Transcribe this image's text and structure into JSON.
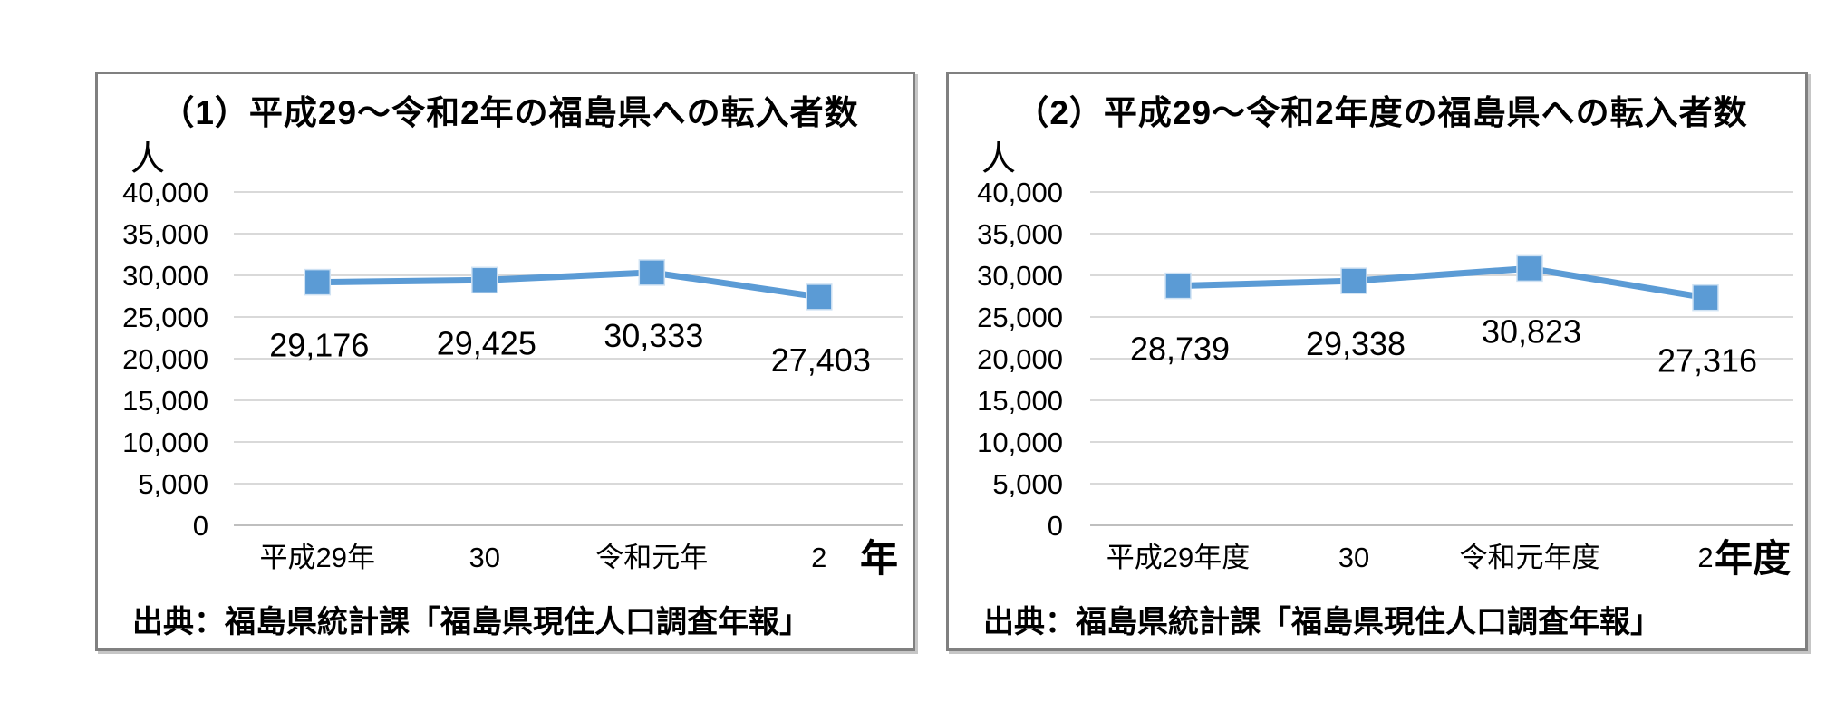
{
  "colors": {
    "series_blue": "#5B9BD5",
    "marker_edge": "#CFE2F3",
    "gridline": "#D9D9D9",
    "axis_line": "#BFBFBF",
    "frame_border": "#808080",
    "text": "#000000"
  },
  "chart_data": [
    {
      "type": "line",
      "title": "（1）平成29～令和2年の福島県への転入者数",
      "ylabel": "人",
      "xlabel": "年",
      "categories": [
        "平成29年",
        "30",
        "令和元年",
        "2"
      ],
      "values": [
        29176,
        29425,
        30333,
        27403
      ],
      "data_labels": [
        "29,176",
        "29,425",
        "30,333",
        "27,403"
      ],
      "ylim": [
        0,
        40000
      ],
      "ytick_step": 5000,
      "ytick_labels": [
        "0",
        "5,000",
        "10,000",
        "15,000",
        "20,000",
        "25,000",
        "30,000",
        "35,000",
        "40,000"
      ],
      "grid": true,
      "legend": "none",
      "marker": "square",
      "source": "出典：福島県統計課「福島県現住人口調査年報」"
    },
    {
      "type": "line",
      "title": "（2）平成29～令和2年度の福島県への転入者数",
      "ylabel": "人",
      "xlabel": "年度",
      "categories": [
        "平成29年度",
        "30",
        "令和元年度",
        "2"
      ],
      "values": [
        28739,
        29338,
        30823,
        27316
      ],
      "data_labels": [
        "28,739",
        "29,338",
        "30,823",
        "27,316"
      ],
      "ylim": [
        0,
        40000
      ],
      "ytick_step": 5000,
      "ytick_labels": [
        "0",
        "5,000",
        "10,000",
        "15,000",
        "20,000",
        "25,000",
        "30,000",
        "35,000",
        "40,000"
      ],
      "grid": true,
      "legend": "none",
      "marker": "square",
      "source": "出典：福島県統計課「福島県現住人口調査年報」"
    }
  ]
}
